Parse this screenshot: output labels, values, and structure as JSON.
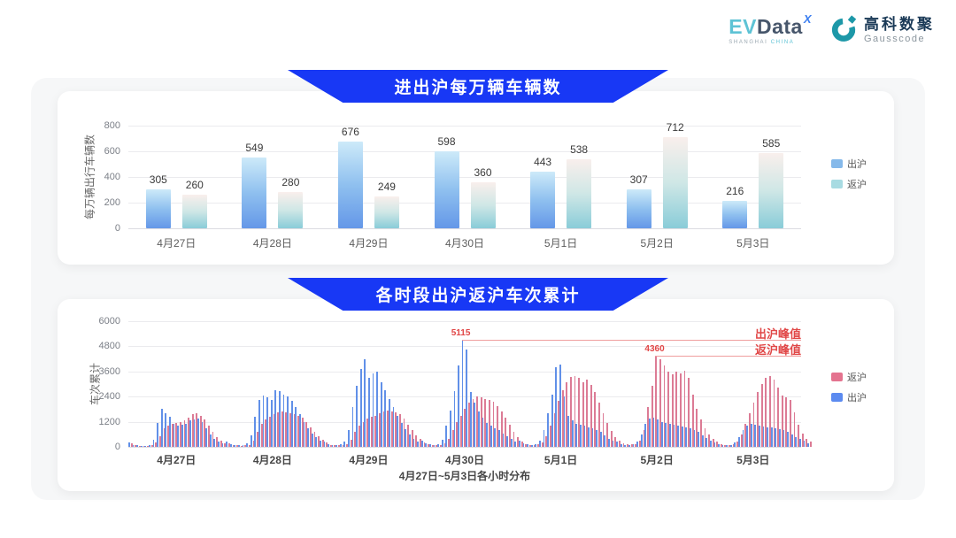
{
  "logo": {
    "evdata": {
      "ev": "EV",
      "data": "Data",
      "sup": "X",
      "subtitle": "SHANGHAI ",
      "subtitle_cn": "CHINA"
    },
    "gausscode": {
      "cn": "高科数聚",
      "en": "Gausscode"
    }
  },
  "colors": {
    "banner_blue": "#1838f5",
    "annotation_red": "#e14747",
    "annotation_line": "#ef9e9e",
    "gausscode_teal": "#1d98a8"
  },
  "chart_data": [
    {
      "type": "bar",
      "title": "进出沪每万辆车辆数",
      "ylabel": "每万辆出行车辆数",
      "categories": [
        "4月27日",
        "4月28日",
        "4月29日",
        "4月30日",
        "5月1日",
        "5月2日",
        "5月3日"
      ],
      "series": [
        {
          "name": "出沪",
          "values": [
            305,
            549,
            676,
            598,
            443,
            307,
            216
          ],
          "gradient": [
            "#cdeaf9",
            "#8fc0ef",
            "#6497e8"
          ]
        },
        {
          "name": "返沪",
          "values": [
            260,
            280,
            249,
            360,
            538,
            712,
            585
          ],
          "gradient": [
            "#f9efec",
            "#cfe7e6",
            "#89ccd8"
          ]
        }
      ],
      "ylim": [
        0,
        800
      ],
      "yticks": [
        0,
        200,
        400,
        600,
        800
      ],
      "grid": true,
      "legend_position": "right",
      "legend": [
        {
          "label": "出沪",
          "color": "#85b9ea"
        },
        {
          "label": "返沪",
          "color": "#a8dbe2"
        }
      ]
    },
    {
      "type": "bar",
      "title": "各时段出沪返沪车次累计",
      "ylabel": "车次累计",
      "xlabel": "4月27日~5月3日各小时分布",
      "categories": [
        "4月27日",
        "4月28日",
        "4月29日",
        "4月30日",
        "5月1日",
        "5月2日",
        "5月3日"
      ],
      "hours_per_day": 24,
      "ylim": [
        0,
        6000
      ],
      "yticks": [
        0,
        1200,
        2400,
        3600,
        4800,
        6000
      ],
      "grid": true,
      "legend_position": "right",
      "legend": [
        {
          "label": "返沪",
          "color": "#e4738f"
        },
        {
          "label": "出沪",
          "color": "#5c8bf0"
        }
      ],
      "series": [
        {
          "name": "出沪",
          "color": "#6190e8",
          "values_by_day": [
            [
              200,
              100,
              80,
              60,
              60,
              80,
              350,
              1150,
              1800,
              1600,
              1450,
              1100,
              1000,
              1050,
              1100,
              1250,
              1300,
              1350,
              1200,
              900,
              600,
              400,
              250,
              150
            ],
            [
              250,
              120,
              90,
              80,
              90,
              150,
              550,
              1450,
              2250,
              2450,
              2350,
              2250,
              2700,
              2650,
              2500,
              2400,
              2200,
              1900,
              1550,
              1200,
              900,
              650,
              450,
              300
            ],
            [
              250,
              130,
              100,
              90,
              110,
              250,
              800,
              1900,
              2900,
              3700,
              4200,
              3300,
              3500,
              3600,
              3100,
              2700,
              2300,
              1900,
              1500,
              1150,
              850,
              600,
              400,
              250
            ],
            [
              300,
              150,
              110,
              100,
              130,
              350,
              1000,
              1750,
              2650,
              3900,
              5115,
              4650,
              2600,
              2100,
              1700,
              1400,
              1150,
              1000,
              900,
              800,
              650,
              500,
              380,
              250
            ],
            [
              280,
              150,
              110,
              100,
              130,
              300,
              800,
              1600,
              2500,
              3800,
              3950,
              2400,
              1500,
              1250,
              1100,
              1050,
              1000,
              950,
              900,
              800,
              700,
              550,
              400,
              280
            ],
            [
              250,
              140,
              100,
              90,
              120,
              250,
              600,
              1100,
              1350,
              1400,
              1300,
              1200,
              1150,
              1100,
              1050,
              1000,
              980,
              950,
              900,
              820,
              700,
              550,
              420,
              300
            ],
            [
              220,
              120,
              90,
              80,
              100,
              200,
              450,
              800,
              1000,
              1100,
              1050,
              1000,
              980,
              950,
              920,
              900,
              850,
              800,
              700,
              600,
              480,
              380,
              280,
              180
            ]
          ]
        },
        {
          "name": "返沪",
          "color": "#dc7b95",
          "values_by_day": [
            [
              150,
              80,
              60,
              50,
              50,
              70,
              200,
              500,
              900,
              1000,
              1100,
              1150,
              1200,
              1250,
              1400,
              1550,
              1600,
              1500,
              1300,
              1000,
              700,
              450,
              300,
              180
            ],
            [
              180,
              100,
              70,
              60,
              70,
              100,
              300,
              700,
              1100,
              1300,
              1450,
              1550,
              1650,
              1700,
              1650,
              1600,
              1550,
              1500,
              1400,
              1200,
              950,
              700,
              500,
              350
            ],
            [
              200,
              100,
              80,
              70,
              80,
              120,
              350,
              700,
              1000,
              1200,
              1350,
              1450,
              1500,
              1600,
              1700,
              1750,
              1700,
              1650,
              1550,
              1350,
              1050,
              800,
              550,
              380
            ],
            [
              220,
              120,
              90,
              80,
              100,
              150,
              400,
              800,
              1200,
              1500,
              1800,
              2100,
              2300,
              2400,
              2350,
              2300,
              2250,
              2150,
              1950,
              1700,
              1400,
              1050,
              700,
              450
            ],
            [
              250,
              130,
              100,
              90,
              110,
              200,
              500,
              1000,
              1600,
              2200,
              2700,
              3100,
              3350,
              3400,
              3300,
              3100,
              3200,
              2950,
              2600,
              2100,
              1600,
              1150,
              750,
              480
            ],
            [
              300,
              160,
              120,
              110,
              140,
              300,
              800,
              1900,
              2900,
              4360,
              4200,
              3900,
              3600,
              3450,
              3600,
              3500,
              3650,
              3300,
              2500,
              1800,
              1300,
              900,
              600,
              400
            ],
            [
              260,
              140,
              100,
              90,
              120,
              250,
              600,
              1100,
              1600,
              2100,
              2600,
              3000,
              3300,
              3400,
              3200,
              2850,
              2450,
              2350,
              2250,
              1650,
              1050,
              650,
              400,
              250
            ]
          ]
        }
      ],
      "annotations": [
        {
          "series": "出沪",
          "label": "出沪峰值",
          "value": 5115,
          "value_label": "5115"
        },
        {
          "series": "返沪",
          "label": "返沪峰值",
          "value": 4360,
          "value_label": "4360"
        }
      ]
    }
  ]
}
